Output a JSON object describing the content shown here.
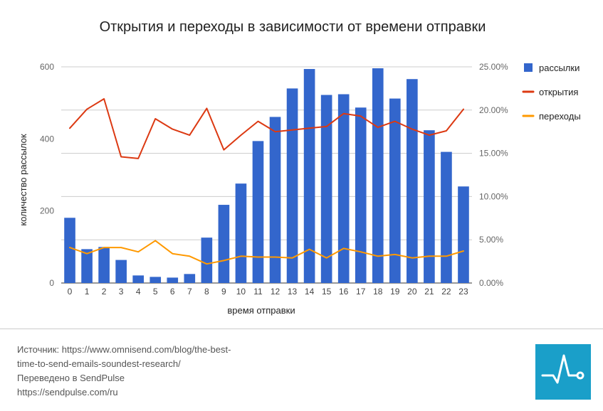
{
  "chart_data": {
    "type": "bar+line",
    "title": "Открытия и переходы в зависимости от времени отправки",
    "xlabel": "время отправки",
    "ylabel": "количество рассылок",
    "categories": [
      "0",
      "1",
      "2",
      "3",
      "4",
      "5",
      "6",
      "7",
      "8",
      "9",
      "10",
      "11",
      "12",
      "13",
      "14",
      "15",
      "16",
      "17",
      "18",
      "19",
      "20",
      "21",
      "22",
      "23"
    ],
    "y_left": {
      "ticks": [
        "0",
        "200",
        "400",
        "600"
      ],
      "lim": [
        0,
        600
      ]
    },
    "y_right": {
      "ticks": [
        "0.00%",
        "5.00%",
        "10.00%",
        "15.00%",
        "20.00%",
        "25.00%"
      ],
      "lim": [
        0,
        25
      ]
    },
    "grid": true,
    "legend_position": "right",
    "series": [
      {
        "name": "рассылки",
        "kind": "bar",
        "axis": "left",
        "color": "#3366cc",
        "values": [
          181,
          94,
          100,
          64,
          21,
          17,
          15,
          25,
          126,
          217,
          276,
          394,
          461,
          540,
          594,
          522,
          524,
          487,
          596,
          512,
          566,
          424,
          364,
          268
        ]
      },
      {
        "name": "открытия",
        "kind": "line",
        "axis": "right",
        "color": "#dc3912",
        "values": [
          17.9,
          20.1,
          21.3,
          14.6,
          14.4,
          19.0,
          17.8,
          17.1,
          20.2,
          15.4,
          17.1,
          18.7,
          17.5,
          17.7,
          17.9,
          18.1,
          19.6,
          19.3,
          18.0,
          18.7,
          17.8,
          17.1,
          17.6,
          20.1
        ]
      },
      {
        "name": "переходы",
        "kind": "line",
        "axis": "right",
        "color": "#ff9900",
        "values": [
          4.1,
          3.4,
          4.1,
          4.1,
          3.6,
          4.9,
          3.4,
          3.1,
          2.2,
          2.6,
          3.1,
          3.0,
          3.0,
          2.9,
          3.9,
          2.9,
          4.0,
          3.6,
          3.1,
          3.3,
          2.9,
          3.1,
          3.1,
          3.7
        ]
      }
    ]
  },
  "footer": {
    "line1": "Источник: https://www.omnisend.com/blog/the-best-",
    "line2": "time-to-send-emails-soundest-research/",
    "line3": "Переведено в SendPulse",
    "line4": "https://sendpulse.com/ru"
  },
  "logo": {
    "icon": "pulse-line-icon",
    "background": "#1a9fc9"
  }
}
